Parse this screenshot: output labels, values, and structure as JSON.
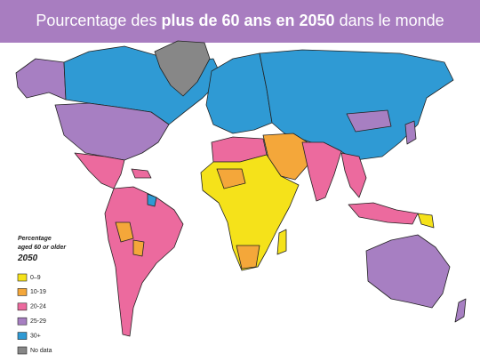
{
  "header": {
    "title_parts": [
      "Pourcentage des ",
      "plus de 60 ans en 2050",
      " dans le monde"
    ]
  },
  "legend": {
    "title": "Percentage",
    "subtitle": "aged 60 or older",
    "year": "2050",
    "items": [
      {
        "label": "0–9",
        "color": "#f5e21a"
      },
      {
        "label": "10-19",
        "color": "#f4a73a"
      },
      {
        "label": "20-24",
        "color": "#ec6a9e"
      },
      {
        "label": "25-29",
        "color": "#a77fc2"
      },
      {
        "label": "30+",
        "color": "#2f9ad4"
      },
      {
        "label": "No data",
        "color": "#878787"
      }
    ]
  }
}
